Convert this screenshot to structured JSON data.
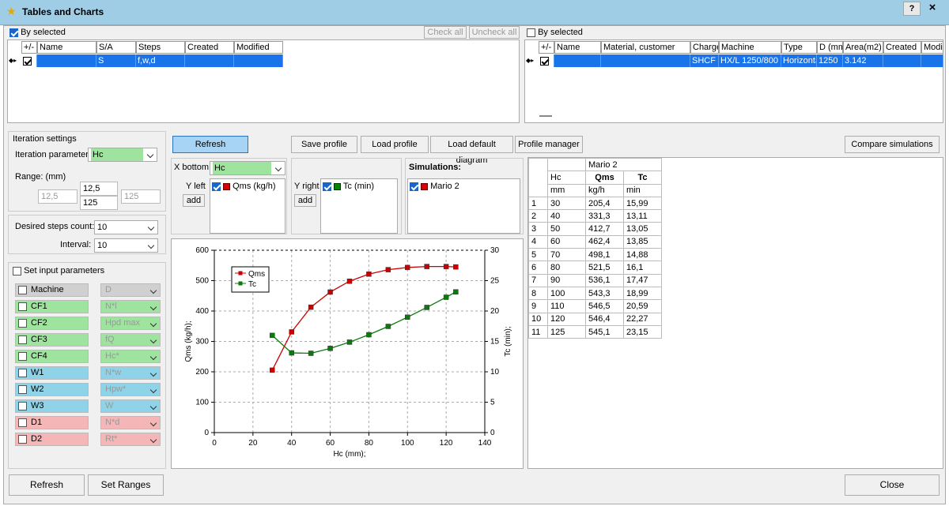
{
  "window": {
    "title": "Tables and Charts",
    "help": "?",
    "close": "×"
  },
  "left_grid": {
    "by_selected": "By selected",
    "check_all": "Check all",
    "uncheck_all": "Uncheck all",
    "cols": [
      "+/-",
      "Name",
      "S/A",
      "Steps",
      "Created",
      "Modified"
    ],
    "row": {
      "sa": "S",
      "steps": "f,w,d"
    }
  },
  "right_grid": {
    "by_selected": "By selected",
    "cols": [
      "+/-",
      "Name",
      "Material, customer",
      "Charge",
      "Machine",
      "Type",
      "D (mm",
      "Area(m2)",
      "Created",
      "Modif"
    ],
    "row": {
      "charge": "SHCF",
      "machine": "HX/L 1250/800",
      "type": "Horizonta",
      "d": "1250",
      "area": "3.142"
    }
  },
  "iteration": {
    "group": "Iteration settings",
    "param_label": "Iteration parameter:",
    "param_value": "Hc",
    "range_label": "Range:  (mm)",
    "range_min": "12,5",
    "range_from": "12,5",
    "range_to": "125",
    "range_max": "125",
    "steps_label": "Desired steps count:",
    "steps_value": "10",
    "interval_label": "Interval:",
    "interval_value": "10"
  },
  "input_params": {
    "label": "Set input parameters",
    "rows": [
      {
        "name": "Machine",
        "param": "D",
        "color": "#d0d0d0"
      },
      {
        "name": "CF1",
        "param": "N*l",
        "color": "#9ee49e"
      },
      {
        "name": "CF2",
        "param": "Hpd max",
        "color": "#9ee49e"
      },
      {
        "name": "CF3",
        "param": "fQ",
        "color": "#9ee49e"
      },
      {
        "name": "CF4",
        "param": "Hc*",
        "color": "#9ee49e"
      },
      {
        "name": "W1",
        "param": "N*w",
        "color": "#8fd3e8"
      },
      {
        "name": "W2",
        "param": "Hpw*",
        "color": "#8fd3e8"
      },
      {
        "name": "W3",
        "param": "W",
        "color": "#8fd3e8"
      },
      {
        "name": "D1",
        "param": "N*d",
        "color": "#f4b6b6"
      },
      {
        "name": "D2",
        "param": "Rt*",
        "color": "#f4b6b6"
      }
    ]
  },
  "toolbar": {
    "refresh": "Refresh",
    "save_profile": "Save profile",
    "load_profile": "Load profile",
    "load_default": "Load default diagram",
    "profile_manager": "Profile manager",
    "compare": "Compare simulations"
  },
  "axes_cfg": {
    "x_bottom": "X bottom",
    "x_value": "Hc",
    "y_left": "Y left",
    "y_left_series": "Qms (kg/h)",
    "y_right": "Y right",
    "y_right_series": "Tc (min)",
    "add": "add",
    "simulations": "Simulations:",
    "sim_name": "Mario 2"
  },
  "table": {
    "sim": "Mario 2",
    "headers": [
      "Hc",
      "Qms",
      "Tc"
    ],
    "units": [
      "mm",
      "kg/h",
      "min"
    ],
    "rows": [
      [
        "1",
        "30",
        "205,4",
        "15,99"
      ],
      [
        "2",
        "40",
        "331,3",
        "13,11"
      ],
      [
        "3",
        "50",
        "412,7",
        "13,05"
      ],
      [
        "4",
        "60",
        "462,4",
        "13,85"
      ],
      [
        "5",
        "70",
        "498,1",
        "14,88"
      ],
      [
        "6",
        "80",
        "521,5",
        "16,1"
      ],
      [
        "7",
        "90",
        "536,1",
        "17,47"
      ],
      [
        "8",
        "100",
        "543,3",
        "18,99"
      ],
      [
        "9",
        "110",
        "546,5",
        "20,59"
      ],
      [
        "10",
        "120",
        "546,4",
        "22,27"
      ],
      [
        "11",
        "125",
        "545,1",
        "23,15"
      ]
    ]
  },
  "footer": {
    "refresh": "Refresh",
    "set_ranges": "Set Ranges",
    "close": "Close"
  },
  "chart_data": {
    "type": "line",
    "xlabel": "Hc (mm);",
    "ylabel": "Qms (kg/h);",
    "y2label": "Tc (min);",
    "xlim": [
      0,
      140
    ],
    "ylim": [
      0,
      600
    ],
    "y2lim": [
      0,
      30
    ],
    "xticks": [
      "0",
      "20",
      "40",
      "60",
      "80",
      "100",
      "120",
      "140"
    ],
    "yticks": [
      "0",
      "100",
      "200",
      "300",
      "400",
      "500",
      "600"
    ],
    "y2ticks": [
      "0",
      "5",
      "10",
      "15",
      "20",
      "25",
      "30"
    ],
    "x": [
      30,
      40,
      50,
      60,
      70,
      80,
      90,
      100,
      110,
      120,
      125
    ],
    "series": [
      {
        "name": "Qms",
        "axis": "left",
        "color": "#cc0000",
        "values": [
          205.4,
          331.3,
          412.7,
          462.4,
          498.1,
          521.5,
          536.1,
          543.3,
          546.5,
          546.4,
          545.1
        ]
      },
      {
        "name": "Tc",
        "axis": "right",
        "color": "#0a7a0a",
        "values": [
          15.99,
          13.11,
          13.05,
          13.85,
          14.88,
          16.1,
          17.47,
          18.99,
          20.59,
          22.27,
          23.15
        ]
      }
    ],
    "grid": true,
    "legend": "top-left"
  }
}
